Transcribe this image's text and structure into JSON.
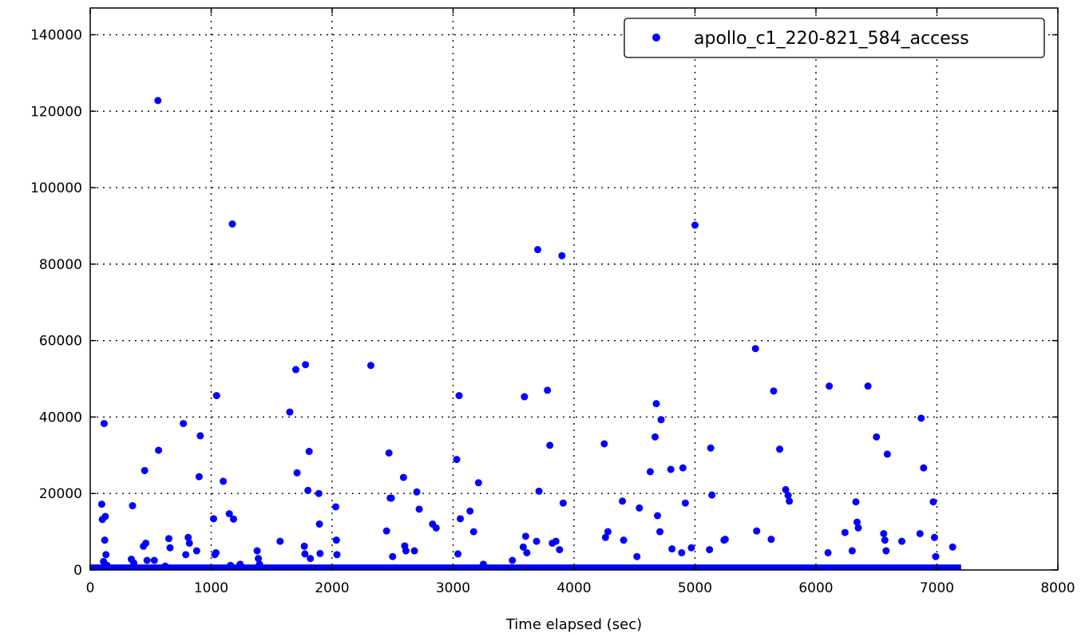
{
  "chart_data": {
    "type": "scatter",
    "title": "",
    "xlabel": "Time elapsed (sec)",
    "ylabel": "",
    "xlim": [
      0,
      8000
    ],
    "ylim": [
      0,
      147000
    ],
    "x_ticks": [
      0,
      1000,
      2000,
      3000,
      4000,
      5000,
      6000,
      7000,
      8000
    ],
    "x_tick_labels": [
      "0",
      "1000",
      "2000",
      "3000",
      "4000",
      "5000",
      "6000",
      "7000",
      "8000"
    ],
    "y_ticks": [
      0,
      20000,
      40000,
      60000,
      80000,
      100000,
      120000,
      140000
    ],
    "y_tick_labels": [
      "0",
      "20000",
      "40000",
      "60000",
      "80000",
      "100000",
      "120000",
      "140000"
    ],
    "grid": true,
    "legend_position": "top-right",
    "series": [
      {
        "name": "apollo_c1_220-821_584_access",
        "color": "#0000ff",
        "baseline_band": {
          "x_start": 0,
          "x_end": 7200,
          "y_max": 600
        },
        "points": [
          [
            95,
            17200
          ],
          [
            100,
            13200
          ],
          [
            115,
            38300
          ],
          [
            120,
            7800
          ],
          [
            125,
            14000
          ],
          [
            130,
            4000
          ],
          [
            140,
            1200
          ],
          [
            110,
            2200
          ],
          [
            350,
            16800
          ],
          [
            340,
            2800
          ],
          [
            360,
            1800
          ],
          [
            450,
            26000
          ],
          [
            440,
            6200
          ],
          [
            460,
            7000
          ],
          [
            470,
            2500
          ],
          [
            560,
            122800
          ],
          [
            565,
            31300
          ],
          [
            530,
            2500
          ],
          [
            650,
            8200
          ],
          [
            660,
            5800
          ],
          [
            620,
            1000
          ],
          [
            770,
            38300
          ],
          [
            790,
            4000
          ],
          [
            810,
            8500
          ],
          [
            820,
            7000
          ],
          [
            880,
            5000
          ],
          [
            900,
            24400
          ],
          [
            910,
            35100
          ],
          [
            1020,
            13400
          ],
          [
            1030,
            4000
          ],
          [
            1040,
            4500
          ],
          [
            1045,
            45600
          ],
          [
            1100,
            23200
          ],
          [
            1150,
            14700
          ],
          [
            1160,
            1200
          ],
          [
            1175,
            90500
          ],
          [
            1185,
            13300
          ],
          [
            1240,
            1500
          ],
          [
            1380,
            5000
          ],
          [
            1390,
            3000
          ],
          [
            1400,
            1500
          ],
          [
            1570,
            7500
          ],
          [
            1650,
            41300
          ],
          [
            1700,
            52400
          ],
          [
            1710,
            25400
          ],
          [
            1780,
            53700
          ],
          [
            1770,
            6200
          ],
          [
            1775,
            4200
          ],
          [
            1800,
            20800
          ],
          [
            1810,
            31000
          ],
          [
            1820,
            3000
          ],
          [
            1890,
            20000
          ],
          [
            1895,
            12000
          ],
          [
            1900,
            4300
          ],
          [
            2030,
            16500
          ],
          [
            2035,
            7800
          ],
          [
            2040,
            4000
          ],
          [
            2320,
            53500
          ],
          [
            2450,
            10200
          ],
          [
            2470,
            30600
          ],
          [
            2480,
            18800
          ],
          [
            2490,
            18800
          ],
          [
            2500,
            3500
          ],
          [
            2590,
            24200
          ],
          [
            2600,
            6300
          ],
          [
            2610,
            5000
          ],
          [
            2680,
            5000
          ],
          [
            2700,
            20400
          ],
          [
            2720,
            15900
          ],
          [
            2830,
            12000
          ],
          [
            2860,
            11000
          ],
          [
            3030,
            28900
          ],
          [
            3040,
            4200
          ],
          [
            3050,
            45600
          ],
          [
            3060,
            13400
          ],
          [
            3140,
            15400
          ],
          [
            3170,
            10000
          ],
          [
            3210,
            22800
          ],
          [
            3250,
            1500
          ],
          [
            3490,
            2500
          ],
          [
            3580,
            6000
          ],
          [
            3590,
            45300
          ],
          [
            3600,
            8800
          ],
          [
            3610,
            4500
          ],
          [
            3690,
            7500
          ],
          [
            3700,
            83800
          ],
          [
            3710,
            20600
          ],
          [
            3780,
            47000
          ],
          [
            3800,
            32600
          ],
          [
            3820,
            7000
          ],
          [
            3850,
            7500
          ],
          [
            3880,
            5300
          ],
          [
            3900,
            82200
          ],
          [
            3910,
            17500
          ],
          [
            4250,
            33000
          ],
          [
            4260,
            8500
          ],
          [
            4280,
            10000
          ],
          [
            4400,
            18000
          ],
          [
            4410,
            7800
          ],
          [
            4520,
            3500
          ],
          [
            4540,
            16200
          ],
          [
            4630,
            25700
          ],
          [
            4670,
            34800
          ],
          [
            4680,
            43500
          ],
          [
            4690,
            14200
          ],
          [
            4710,
            10000
          ],
          [
            4720,
            39300
          ],
          [
            4800,
            26300
          ],
          [
            4810,
            5500
          ],
          [
            4890,
            4500
          ],
          [
            4900,
            26700
          ],
          [
            4920,
            17500
          ],
          [
            4970,
            5800
          ],
          [
            5000,
            90200
          ],
          [
            5120,
            5300
          ],
          [
            5130,
            31900
          ],
          [
            5140,
            19600
          ],
          [
            5240,
            7800
          ],
          [
            5250,
            8000
          ],
          [
            5500,
            57900
          ],
          [
            5510,
            10200
          ],
          [
            5630,
            8000
          ],
          [
            5650,
            46800
          ],
          [
            5700,
            31600
          ],
          [
            5750,
            21000
          ],
          [
            5770,
            19500
          ],
          [
            5780,
            18000
          ],
          [
            6100,
            4500
          ],
          [
            6110,
            48100
          ],
          [
            6240,
            9800
          ],
          [
            6300,
            5000
          ],
          [
            6330,
            17800
          ],
          [
            6340,
            12500
          ],
          [
            6350,
            11000
          ],
          [
            6430,
            48100
          ],
          [
            6500,
            34800
          ],
          [
            6560,
            9500
          ],
          [
            6570,
            7800
          ],
          [
            6580,
            5000
          ],
          [
            6590,
            30300
          ],
          [
            6710,
            7500
          ],
          [
            6860,
            9500
          ],
          [
            6870,
            39700
          ],
          [
            6890,
            26700
          ],
          [
            6970,
            17800
          ],
          [
            6980,
            8500
          ],
          [
            6990,
            3500
          ],
          [
            7130,
            6000
          ]
        ]
      }
    ]
  }
}
